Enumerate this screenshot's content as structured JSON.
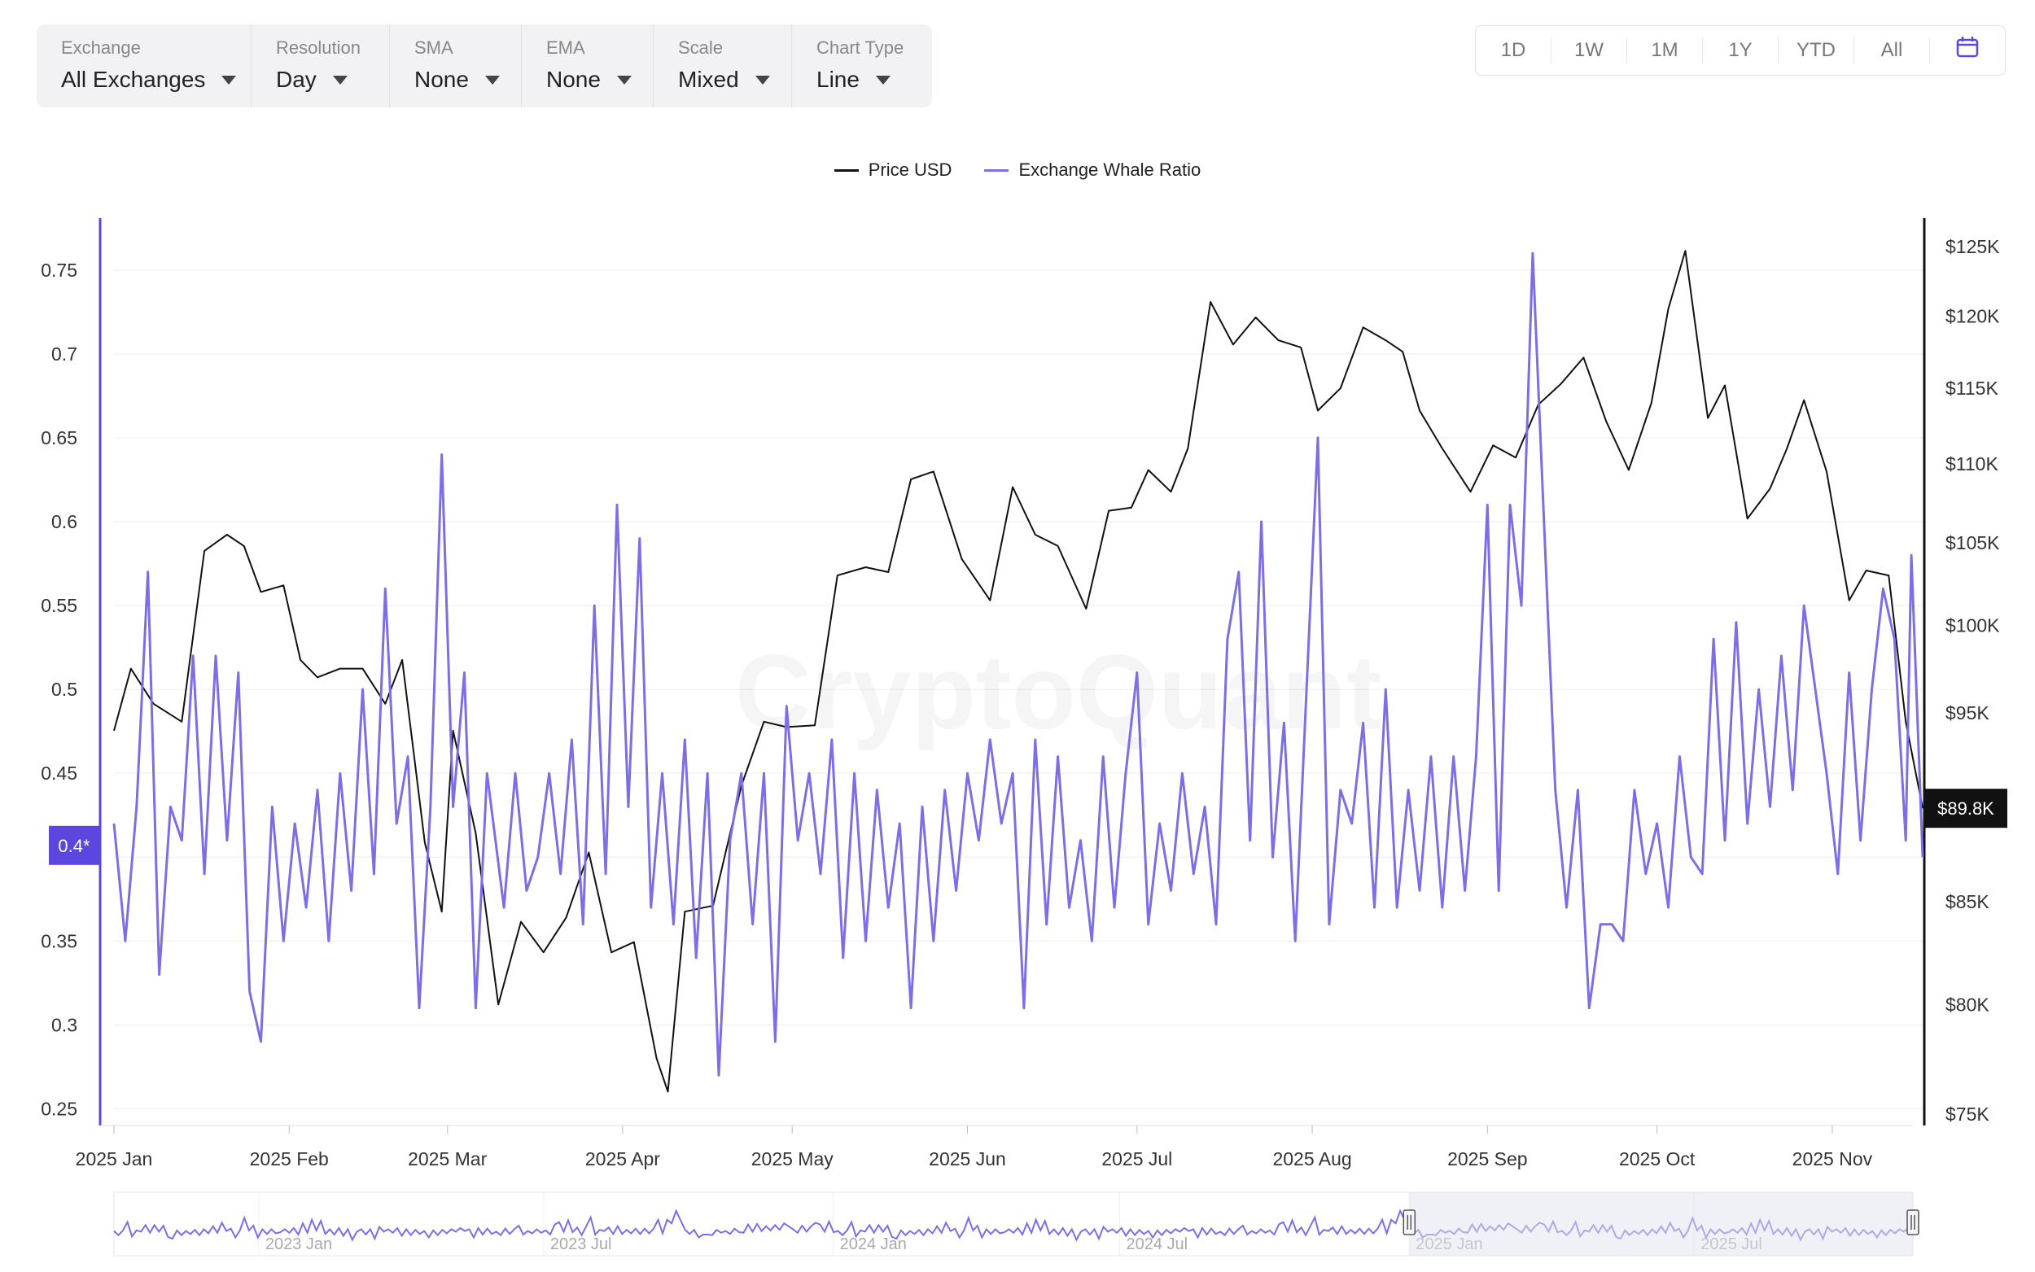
{
  "toolbar": {
    "controls": [
      {
        "label": "Exchange",
        "value": "All Exchanges"
      },
      {
        "label": "Resolution",
        "value": "Day"
      },
      {
        "label": "SMA",
        "value": "None"
      },
      {
        "label": "EMA",
        "value": "None"
      },
      {
        "label": "Scale",
        "value": "Mixed"
      },
      {
        "label": "Chart Type",
        "value": "Line"
      }
    ]
  },
  "range": {
    "buttons": [
      "1D",
      "1W",
      "1M",
      "1Y",
      "YTD",
      "All"
    ],
    "calendar_icon": "calendar-icon"
  },
  "colors": {
    "price": "#111111",
    "ratio": "#7b6ee6",
    "accent": "#5b47e0",
    "grid": "#eeeeee"
  },
  "watermark": "CryptoQuant",
  "chart_data": {
    "type": "line",
    "legend": [
      "Price USD",
      "Exchange Whale Ratio"
    ],
    "legend_position": "top-center",
    "left_axis": {
      "ticks": [
        "0.25",
        "0.3",
        "0.35",
        "0.4",
        "0.45",
        "0.5",
        "0.55",
        "0.6",
        "0.65",
        "0.7",
        "0.75"
      ],
      "range": [
        0.24,
        0.78
      ],
      "current_label": "0.4*",
      "current_value": 0.407
    },
    "right_axis": {
      "ticks": [
        "$75K",
        "$80K",
        "$85K",
        "$90K",
        "$95K",
        "$100K",
        "$105K",
        "$110K",
        "$115K",
        "$120K",
        "$125K"
      ],
      "ticks_values": [
        75000,
        80000,
        85000,
        90000,
        95000,
        100000,
        105000,
        110000,
        115000,
        120000,
        125000
      ],
      "scale": "log",
      "range": [
        74500,
        127000
      ],
      "current_label": "$89.8K",
      "current_value": 89800
    },
    "x_axis": {
      "ticks": [
        "2025 Jan",
        "2025 Feb",
        "2025 Mar",
        "2025 Apr",
        "2025 May",
        "2025 Jun",
        "2025 Jul",
        "2025 Aug",
        "2025 Sep",
        "2025 Oct",
        "2025 Nov"
      ],
      "start": "2025-01-01",
      "end": "2025-11-17"
    },
    "series": [
      {
        "name": "Price USD",
        "axis": "right",
        "points": [
          [
            "2025-01-01",
            94000
          ],
          [
            "2025-01-04",
            97500
          ],
          [
            "2025-01-08",
            95500
          ],
          [
            "2025-01-13",
            94500
          ],
          [
            "2025-01-17",
            104500
          ],
          [
            "2025-01-21",
            105500
          ],
          [
            "2025-01-24",
            104800
          ],
          [
            "2025-01-27",
            102000
          ],
          [
            "2025-01-31",
            102400
          ],
          [
            "2025-02-03",
            98000
          ],
          [
            "2025-02-06",
            97000
          ],
          [
            "2025-02-10",
            97500
          ],
          [
            "2025-02-14",
            97500
          ],
          [
            "2025-02-18",
            95500
          ],
          [
            "2025-02-21",
            98000
          ],
          [
            "2025-02-25",
            88000
          ],
          [
            "2025-02-28",
            84500
          ],
          [
            "2025-03-02",
            94000
          ],
          [
            "2025-03-06",
            88500
          ],
          [
            "2025-03-10",
            80000
          ],
          [
            "2025-03-14",
            84000
          ],
          [
            "2025-03-18",
            82500
          ],
          [
            "2025-03-22",
            84200
          ],
          [
            "2025-03-26",
            87500
          ],
          [
            "2025-03-30",
            82500
          ],
          [
            "2025-04-03",
            83000
          ],
          [
            "2025-04-07",
            77500
          ],
          [
            "2025-04-09",
            76000
          ],
          [
            "2025-04-12",
            84500
          ],
          [
            "2025-04-17",
            84800
          ],
          [
            "2025-04-22",
            91000
          ],
          [
            "2025-04-26",
            94500
          ],
          [
            "2025-04-30",
            94200
          ],
          [
            "2025-05-05",
            94300
          ],
          [
            "2025-05-09",
            103000
          ],
          [
            "2025-05-14",
            103500
          ],
          [
            "2025-05-18",
            103200
          ],
          [
            "2025-05-22",
            109000
          ],
          [
            "2025-05-26",
            109500
          ],
          [
            "2025-05-31",
            104000
          ],
          [
            "2025-06-05",
            101500
          ],
          [
            "2025-06-09",
            108500
          ],
          [
            "2025-06-13",
            105500
          ],
          [
            "2025-06-17",
            104800
          ],
          [
            "2025-06-22",
            101000
          ],
          [
            "2025-06-26",
            107000
          ],
          [
            "2025-06-30",
            107200
          ],
          [
            "2025-07-03",
            109600
          ],
          [
            "2025-07-07",
            108200
          ],
          [
            "2025-07-10",
            111000
          ],
          [
            "2025-07-14",
            121000
          ],
          [
            "2025-07-18",
            118000
          ],
          [
            "2025-07-22",
            119900
          ],
          [
            "2025-07-26",
            118300
          ],
          [
            "2025-07-30",
            117800
          ],
          [
            "2025-08-02",
            113500
          ],
          [
            "2025-08-06",
            115000
          ],
          [
            "2025-08-10",
            119200
          ],
          [
            "2025-08-14",
            118300
          ],
          [
            "2025-08-17",
            117500
          ],
          [
            "2025-08-20",
            113500
          ],
          [
            "2025-08-24",
            111000
          ],
          [
            "2025-08-29",
            108200
          ],
          [
            "2025-09-02",
            111200
          ],
          [
            "2025-09-06",
            110400
          ],
          [
            "2025-09-10",
            113900
          ],
          [
            "2025-09-14",
            115300
          ],
          [
            "2025-09-18",
            117100
          ],
          [
            "2025-09-22",
            112800
          ],
          [
            "2025-09-26",
            109600
          ],
          [
            "2025-09-30",
            114000
          ],
          [
            "2025-10-03",
            120500
          ],
          [
            "2025-10-06",
            124700
          ],
          [
            "2025-10-10",
            113000
          ],
          [
            "2025-10-13",
            115200
          ],
          [
            "2025-10-17",
            106500
          ],
          [
            "2025-10-21",
            108400
          ],
          [
            "2025-10-24",
            111000
          ],
          [
            "2025-10-27",
            114200
          ],
          [
            "2025-10-31",
            109500
          ],
          [
            "2025-11-04",
            101500
          ],
          [
            "2025-11-07",
            103300
          ],
          [
            "2025-11-11",
            103000
          ],
          [
            "2025-11-14",
            94500
          ],
          [
            "2025-11-17",
            89800
          ]
        ]
      },
      {
        "name": "Exchange Whale Ratio",
        "axis": "left",
        "points": [
          [
            "2025-01-01",
            0.42
          ],
          [
            "2025-01-03",
            0.35
          ],
          [
            "2025-01-05",
            0.43
          ],
          [
            "2025-01-07",
            0.57
          ],
          [
            "2025-01-09",
            0.33
          ],
          [
            "2025-01-11",
            0.43
          ],
          [
            "2025-01-13",
            0.41
          ],
          [
            "2025-01-15",
            0.52
          ],
          [
            "2025-01-17",
            0.39
          ],
          [
            "2025-01-19",
            0.52
          ],
          [
            "2025-01-21",
            0.41
          ],
          [
            "2025-01-23",
            0.51
          ],
          [
            "2025-01-25",
            0.32
          ],
          [
            "2025-01-27",
            0.29
          ],
          [
            "2025-01-29",
            0.43
          ],
          [
            "2025-01-31",
            0.35
          ],
          [
            "2025-02-02",
            0.42
          ],
          [
            "2025-02-04",
            0.37
          ],
          [
            "2025-02-06",
            0.44
          ],
          [
            "2025-02-08",
            0.35
          ],
          [
            "2025-02-10",
            0.45
          ],
          [
            "2025-02-12",
            0.38
          ],
          [
            "2025-02-14",
            0.5
          ],
          [
            "2025-02-16",
            0.39
          ],
          [
            "2025-02-18",
            0.56
          ],
          [
            "2025-02-20",
            0.42
          ],
          [
            "2025-02-22",
            0.46
          ],
          [
            "2025-02-24",
            0.31
          ],
          [
            "2025-02-26",
            0.43
          ],
          [
            "2025-02-28",
            0.64
          ],
          [
            "2025-03-02",
            0.43
          ],
          [
            "2025-03-04",
            0.51
          ],
          [
            "2025-03-06",
            0.31
          ],
          [
            "2025-03-08",
            0.45
          ],
          [
            "2025-03-11",
            0.37
          ],
          [
            "2025-03-13",
            0.45
          ],
          [
            "2025-03-15",
            0.38
          ],
          [
            "2025-03-17",
            0.4
          ],
          [
            "2025-03-19",
            0.45
          ],
          [
            "2025-03-21",
            0.39
          ],
          [
            "2025-03-23",
            0.47
          ],
          [
            "2025-03-25",
            0.36
          ],
          [
            "2025-03-27",
            0.55
          ],
          [
            "2025-03-29",
            0.39
          ],
          [
            "2025-03-31",
            0.61
          ],
          [
            "2025-04-02",
            0.43
          ],
          [
            "2025-04-04",
            0.59
          ],
          [
            "2025-04-06",
            0.37
          ],
          [
            "2025-04-08",
            0.45
          ],
          [
            "2025-04-10",
            0.36
          ],
          [
            "2025-04-12",
            0.47
          ],
          [
            "2025-04-14",
            0.34
          ],
          [
            "2025-04-16",
            0.45
          ],
          [
            "2025-04-18",
            0.27
          ],
          [
            "2025-04-20",
            0.41
          ],
          [
            "2025-04-22",
            0.45
          ],
          [
            "2025-04-24",
            0.36
          ],
          [
            "2025-04-26",
            0.45
          ],
          [
            "2025-04-28",
            0.29
          ],
          [
            "2025-04-30",
            0.49
          ],
          [
            "2025-05-02",
            0.41
          ],
          [
            "2025-05-04",
            0.45
          ],
          [
            "2025-05-06",
            0.39
          ],
          [
            "2025-05-08",
            0.47
          ],
          [
            "2025-05-10",
            0.34
          ],
          [
            "2025-05-12",
            0.45
          ],
          [
            "2025-05-14",
            0.35
          ],
          [
            "2025-05-16",
            0.44
          ],
          [
            "2025-05-18",
            0.37
          ],
          [
            "2025-05-20",
            0.42
          ],
          [
            "2025-05-22",
            0.31
          ],
          [
            "2025-05-24",
            0.43
          ],
          [
            "2025-05-26",
            0.35
          ],
          [
            "2025-05-28",
            0.44
          ],
          [
            "2025-05-30",
            0.38
          ],
          [
            "2025-06-01",
            0.45
          ],
          [
            "2025-06-03",
            0.41
          ],
          [
            "2025-06-05",
            0.47
          ],
          [
            "2025-06-07",
            0.42
          ],
          [
            "2025-06-09",
            0.45
          ],
          [
            "2025-06-11",
            0.31
          ],
          [
            "2025-06-13",
            0.47
          ],
          [
            "2025-06-15",
            0.36
          ],
          [
            "2025-06-17",
            0.46
          ],
          [
            "2025-06-19",
            0.37
          ],
          [
            "2025-06-21",
            0.41
          ],
          [
            "2025-06-23",
            0.35
          ],
          [
            "2025-06-25",
            0.46
          ],
          [
            "2025-06-27",
            0.37
          ],
          [
            "2025-06-29",
            0.45
          ],
          [
            "2025-07-01",
            0.51
          ],
          [
            "2025-07-03",
            0.36
          ],
          [
            "2025-07-05",
            0.42
          ],
          [
            "2025-07-07",
            0.38
          ],
          [
            "2025-07-09",
            0.45
          ],
          [
            "2025-07-11",
            0.39
          ],
          [
            "2025-07-13",
            0.43
          ],
          [
            "2025-07-15",
            0.36
          ],
          [
            "2025-07-17",
            0.53
          ],
          [
            "2025-07-19",
            0.57
          ],
          [
            "2025-07-21",
            0.41
          ],
          [
            "2025-07-23",
            0.6
          ],
          [
            "2025-07-25",
            0.4
          ],
          [
            "2025-07-27",
            0.48
          ],
          [
            "2025-07-29",
            0.35
          ],
          [
            "2025-07-31",
            0.5
          ],
          [
            "2025-08-02",
            0.65
          ],
          [
            "2025-08-04",
            0.36
          ],
          [
            "2025-08-06",
            0.44
          ],
          [
            "2025-08-08",
            0.42
          ],
          [
            "2025-08-10",
            0.48
          ],
          [
            "2025-08-12",
            0.37
          ],
          [
            "2025-08-14",
            0.5
          ],
          [
            "2025-08-16",
            0.37
          ],
          [
            "2025-08-18",
            0.44
          ],
          [
            "2025-08-20",
            0.38
          ],
          [
            "2025-08-22",
            0.46
          ],
          [
            "2025-08-24",
            0.37
          ],
          [
            "2025-08-26",
            0.46
          ],
          [
            "2025-08-28",
            0.38
          ],
          [
            "2025-08-30",
            0.46
          ],
          [
            "2025-09-01",
            0.61
          ],
          [
            "2025-09-03",
            0.38
          ],
          [
            "2025-09-05",
            0.61
          ],
          [
            "2025-09-07",
            0.55
          ],
          [
            "2025-09-09",
            0.76
          ],
          [
            "2025-09-11",
            0.6
          ],
          [
            "2025-09-13",
            0.44
          ],
          [
            "2025-09-15",
            0.37
          ],
          [
            "2025-09-17",
            0.44
          ],
          [
            "2025-09-19",
            0.31
          ],
          [
            "2025-09-21",
            0.36
          ],
          [
            "2025-09-23",
            0.36
          ],
          [
            "2025-09-25",
            0.35
          ],
          [
            "2025-09-27",
            0.44
          ],
          [
            "2025-09-29",
            0.39
          ],
          [
            "2025-10-01",
            0.42
          ],
          [
            "2025-10-03",
            0.37
          ],
          [
            "2025-10-05",
            0.46
          ],
          [
            "2025-10-07",
            0.4
          ],
          [
            "2025-10-09",
            0.39
          ],
          [
            "2025-10-11",
            0.53
          ],
          [
            "2025-10-13",
            0.41
          ],
          [
            "2025-10-15",
            0.54
          ],
          [
            "2025-10-17",
            0.42
          ],
          [
            "2025-10-19",
            0.5
          ],
          [
            "2025-10-21",
            0.43
          ],
          [
            "2025-10-23",
            0.52
          ],
          [
            "2025-10-25",
            0.44
          ],
          [
            "2025-10-27",
            0.55
          ],
          [
            "2025-10-29",
            0.5
          ],
          [
            "2025-10-31",
            0.45
          ],
          [
            "2025-11-02",
            0.39
          ],
          [
            "2025-11-04",
            0.51
          ],
          [
            "2025-11-06",
            0.41
          ],
          [
            "2025-11-08",
            0.5
          ],
          [
            "2025-11-10",
            0.56
          ],
          [
            "2025-11-12",
            0.53
          ],
          [
            "2025-11-14",
            0.41
          ],
          [
            "2025-11-15",
            0.58
          ],
          [
            "2025-11-17",
            0.4
          ]
        ]
      }
    ],
    "navigator": {
      "ticks": [
        "2023 Jan",
        "2023 Jul",
        "2024 Jan",
        "2024 Jul",
        "2025 Jan",
        "2025 Jul"
      ],
      "start": "2022-10-01",
      "end": "2025-11-17",
      "selected_range": [
        "2025-01-01",
        "2025-11-17"
      ]
    }
  }
}
